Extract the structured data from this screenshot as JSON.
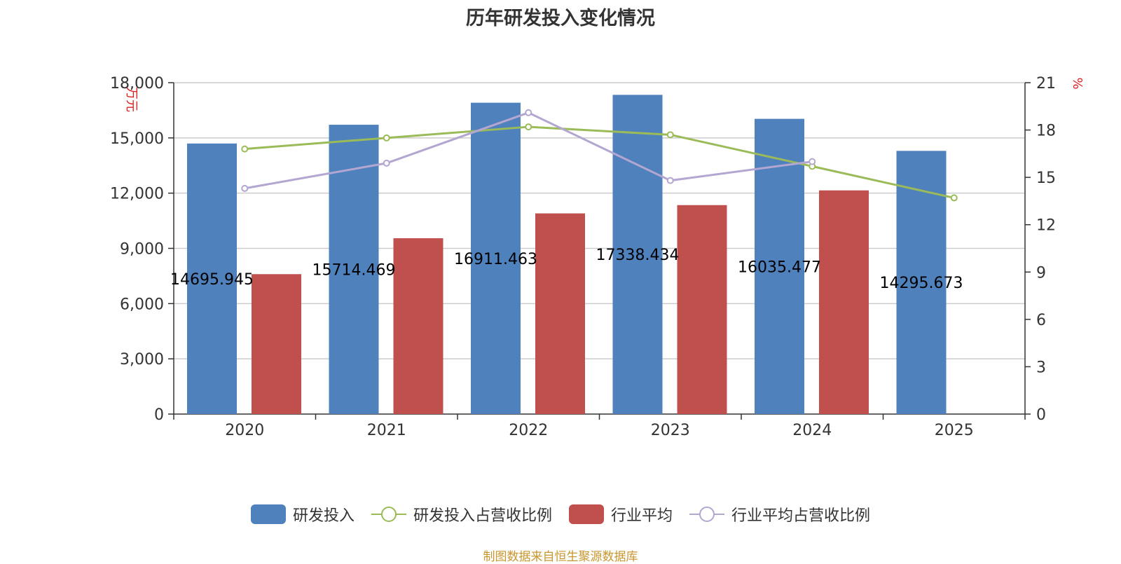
{
  "title": "历年研发投入变化情况",
  "source": "制图数据来自恒生聚源数据库",
  "chart_data": {
    "type": "bar",
    "categories": [
      "2020",
      "2021",
      "2022",
      "2023",
      "2024",
      "2025"
    ],
    "y_left": {
      "unit": "万元",
      "min": 0,
      "max": 18000,
      "ticks": [
        0,
        3000,
        6000,
        9000,
        12000,
        15000,
        18000
      ],
      "tick_labels": [
        "0",
        "3,000",
        "6,000",
        "9,000",
        "12,000",
        "15,000",
        "18,000"
      ]
    },
    "y_right": {
      "unit": "%",
      "min": 0,
      "max": 21,
      "ticks": [
        0,
        3,
        6,
        9,
        12,
        15,
        18,
        21
      ],
      "tick_labels": [
        "0",
        "3",
        "6",
        "9",
        "12",
        "15",
        "18",
        "21"
      ]
    },
    "grid": true,
    "legend_position": "bottom",
    "series": [
      {
        "name": "研发投入",
        "type": "bar",
        "axis": "left",
        "color": "#4f81bd",
        "values": [
          14695.945,
          15714.469,
          16911.463,
          17338.434,
          16035.477,
          14295.673
        ],
        "labels": [
          "14695.945",
          "15714.469",
          "16911.463",
          "17338.434",
          "16035.477",
          "14295.673"
        ]
      },
      {
        "name": "研发投入占营收比例",
        "type": "line",
        "axis": "right",
        "color": "#9bbb59",
        "values": [
          16.8,
          17.5,
          18.2,
          17.7,
          15.7,
          13.7
        ]
      },
      {
        "name": "行业平均",
        "type": "bar",
        "axis": "left",
        "color": "#c0504d",
        "values": [
          7600,
          9550,
          10900,
          11350,
          12150,
          null
        ]
      },
      {
        "name": "行业平均占营收比例",
        "type": "line",
        "axis": "right",
        "color": "#b3a6d0",
        "values": [
          14.3,
          15.9,
          19.1,
          14.8,
          16.0,
          null
        ]
      }
    ]
  }
}
